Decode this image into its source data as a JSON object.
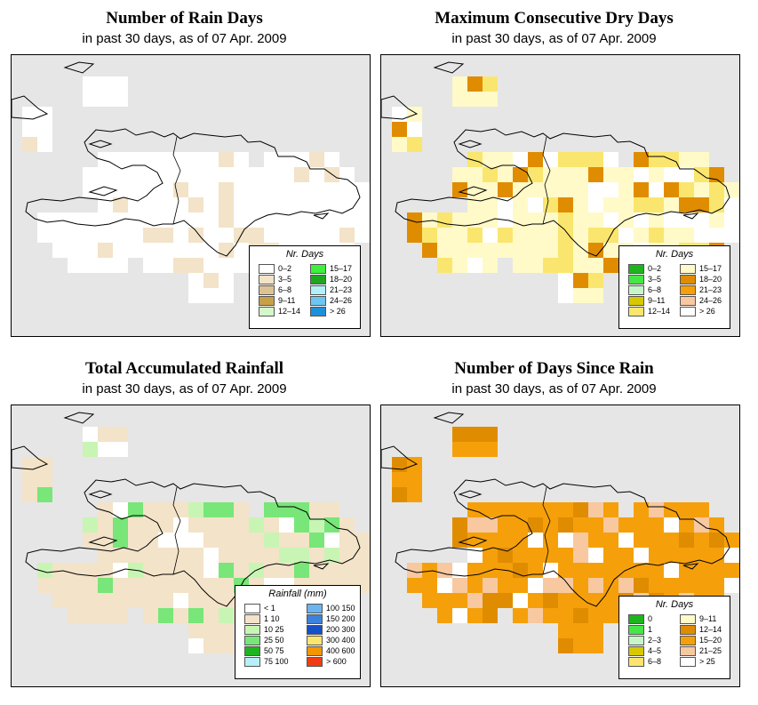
{
  "panels": [
    {
      "id": "rain_days",
      "title": "Number of Rain Days",
      "subtitle": "in past 30 days, as of  07 Apr. 2009",
      "legend": {
        "title": "Nr. Days",
        "items": [
          {
            "label": "0–2",
            "color": "#ffffff"
          },
          {
            "label": "3–5",
            "color": "#f3e3c8"
          },
          {
            "label": "6–8",
            "color": "#dcc396"
          },
          {
            "label": "9–11",
            "color": "#c8a048"
          },
          {
            "label": "12–14",
            "color": "#d4f7c8"
          },
          {
            "label": "15–17",
            "color": "#3ef03e"
          },
          {
            "label": "18–20",
            "color": "#1fa61f"
          },
          {
            "label": "21–23",
            "color": "#b4f0f8"
          },
          {
            "label": "24–26",
            "color": "#6cc6f2"
          },
          {
            "label": "> 26",
            "color": "#1e90d8"
          }
        ]
      }
    },
    {
      "id": "max_dry",
      "title": "Maximum Consecutive Dry Days",
      "subtitle": "in past 30 days, as of  07 Apr. 2009",
      "legend": {
        "title": "Nr. Days",
        "items": [
          {
            "label": "0–2",
            "color": "#1eb41e"
          },
          {
            "label": "3–5",
            "color": "#46e646"
          },
          {
            "label": "6–8",
            "color": "#c8f5c8"
          },
          {
            "label": "9–11",
            "color": "#d8c800"
          },
          {
            "label": "12–14",
            "color": "#fae66e"
          },
          {
            "label": "15–17",
            "color": "#fffac8"
          },
          {
            "label": "18–20",
            "color": "#e08c00"
          },
          {
            "label": "21–23",
            "color": "#f5a00a"
          },
          {
            "label": "24–26",
            "color": "#f8c8a0"
          },
          {
            "label": "> 26",
            "color": "#ffffff"
          }
        ]
      }
    },
    {
      "id": "total_rain",
      "title": "Total Accumulated Rainfall",
      "subtitle": "in past 30 days, as of  07 Apr. 2009",
      "legend": {
        "title": "Rainfall (mm)",
        "items": [
          {
            "label": "< 1",
            "color": "#ffffff"
          },
          {
            "label": "1    10",
            "color": "#f3e3c8"
          },
          {
            "label": "10    25",
            "color": "#c8f5b4"
          },
          {
            "label": "25    50",
            "color": "#78e678"
          },
          {
            "label": "50    75",
            "color": "#1eb41e"
          },
          {
            "label": "75   100",
            "color": "#b4f0f8"
          },
          {
            "label": "100   150",
            "color": "#6cb4f0"
          },
          {
            "label": "150   200",
            "color": "#3c82dc"
          },
          {
            "label": "200   300",
            "color": "#1450c8"
          },
          {
            "label": "300   400",
            "color": "#fae66e"
          },
          {
            "label": "400   600",
            "color": "#f59600"
          },
          {
            "label": "> 600",
            "color": "#f03c14"
          }
        ]
      }
    },
    {
      "id": "days_since",
      "title": "Number of Days Since Rain",
      "subtitle": "in past 30 days, as of  07 Apr. 2009",
      "legend": {
        "title": "Nr. Days",
        "items": [
          {
            "label": "0",
            "color": "#1eb41e"
          },
          {
            "label": "1",
            "color": "#46e646"
          },
          {
            "label": "2–3",
            "color": "#c8f5c8"
          },
          {
            "label": "4–5",
            "color": "#d8c800"
          },
          {
            "label": "6–8",
            "color": "#fae66e"
          },
          {
            "label": "9–11",
            "color": "#fffac8"
          },
          {
            "label": "12–14",
            "color": "#e08c00"
          },
          {
            "label": "15–20",
            "color": "#f5a00a"
          },
          {
            "label": "21–25",
            "color": "#f8c8a0"
          },
          {
            "label": "> 25",
            "color": "#ffffff"
          }
        ]
      }
    }
  ]
}
